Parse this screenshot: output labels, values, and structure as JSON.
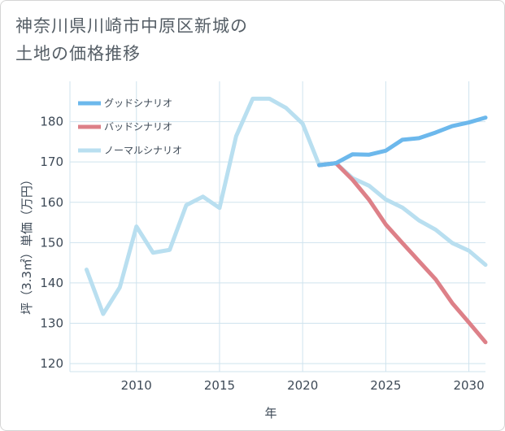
{
  "title": {
    "line1": "神奈川県川崎市中原区新城の",
    "line2": "土地の価格推移"
  },
  "colors": {
    "good": "#6cb8ec",
    "bad": "#dd8088",
    "normal": "#b9dff0",
    "grid": "#cfe3ee",
    "axis_text": "#3e4a57"
  },
  "chart_data": {
    "type": "line",
    "xlabel": "年",
    "ylabel": "坪（3.3㎡）単価（万円）",
    "xlim": [
      2006,
      2031
    ],
    "ylim": [
      118,
      190
    ],
    "xticks": [
      2010,
      2015,
      2020,
      2025,
      2030
    ],
    "yticks": [
      120,
      130,
      140,
      150,
      160,
      170,
      180
    ],
    "legend_position": "top-left",
    "grid": true,
    "series": [
      {
        "name": "グッドシナリオ",
        "color": "#6cb8ec",
        "x": [
          2021,
          2022,
          2023,
          2024,
          2025,
          2026,
          2027,
          2028,
          2029,
          2030,
          2031
        ],
        "y": [
          169.2,
          169.7,
          171.9,
          171.8,
          172.8,
          175.5,
          175.9,
          177.3,
          178.9,
          179.8,
          181.0
        ]
      },
      {
        "name": "バッドシナリオ",
        "color": "#dd8088",
        "x": [
          2021,
          2022,
          2023,
          2024,
          2025,
          2026,
          2027,
          2028,
          2029,
          2030,
          2031
        ],
        "y": [
          169.2,
          169.7,
          165.6,
          160.6,
          154.5,
          149.9,
          145.4,
          140.9,
          135.0,
          130.2,
          125.3
        ]
      },
      {
        "name": "ノーマルシナリオ",
        "color": "#b9dff0",
        "x": [
          2007,
          2008,
          2009,
          2010,
          2011,
          2012,
          2013,
          2014,
          2015,
          2016,
          2017,
          2018,
          2019,
          2020,
          2021,
          2022,
          2023,
          2024,
          2025,
          2026,
          2027,
          2028,
          2029,
          2030,
          2031
        ],
        "y": [
          143.3,
          132.3,
          138.9,
          154.0,
          147.5,
          148.2,
          159.3,
          161.4,
          158.6,
          176.4,
          185.7,
          185.7,
          183.4,
          179.5,
          169.2,
          169.7,
          166.0,
          164.1,
          160.7,
          158.7,
          155.5,
          153.2,
          149.9,
          148.0,
          144.5
        ]
      }
    ]
  }
}
